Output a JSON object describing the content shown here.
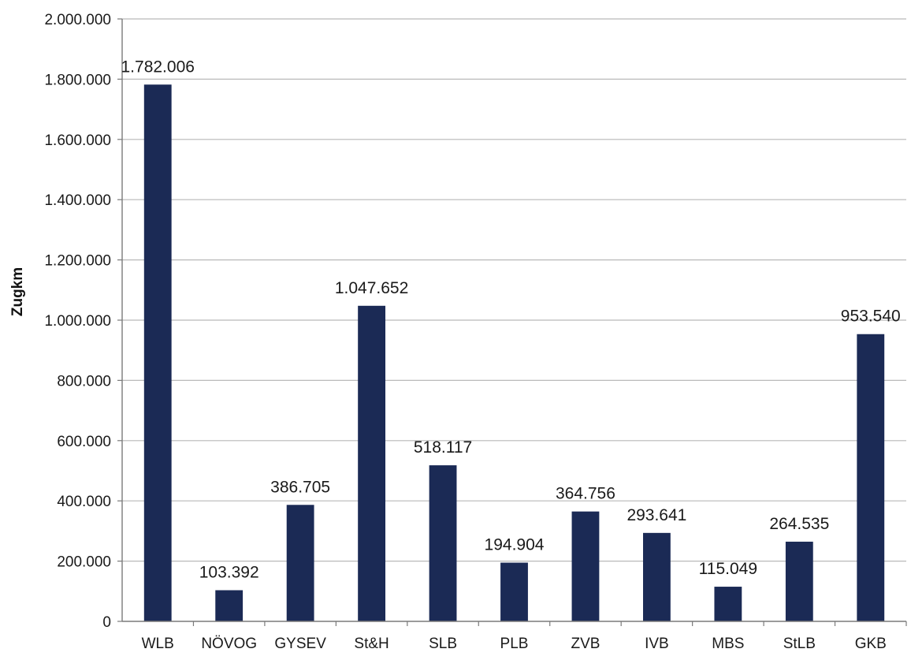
{
  "chart_data": {
    "type": "bar",
    "ylabel": "Zugkm",
    "xlabel": "",
    "title": "",
    "categories": [
      "WLB",
      "NÖVOG",
      "GYSEV",
      "St&H",
      "SLB",
      "PLB",
      "ZVB",
      "IVB",
      "MBS",
      "StLB",
      "GKB"
    ],
    "values": [
      1782006,
      103392,
      386705,
      1047652,
      518117,
      194904,
      364756,
      293641,
      115049,
      264535,
      953540
    ],
    "value_labels": [
      "1.782.006",
      "103.392",
      "386.705",
      "1.047.652",
      "518.117",
      "194.904",
      "364.756",
      "293.641",
      "115.049",
      "264.535",
      "953.540"
    ],
    "ylim": [
      0,
      2000000
    ],
    "yticks": [
      0,
      200000,
      400000,
      600000,
      800000,
      1000000,
      1200000,
      1400000,
      1600000,
      1800000,
      2000000
    ],
    "ytick_labels": [
      "0",
      "200.000",
      "400.000",
      "600.000",
      "800.000",
      "1.000.000",
      "1.200.000",
      "1.400.000",
      "1.600.000",
      "1.800.000",
      "2.000.000"
    ],
    "grid": true,
    "legend": "none",
    "bar_color": "#1b2a55",
    "grid_color": "#b9b9b9"
  }
}
